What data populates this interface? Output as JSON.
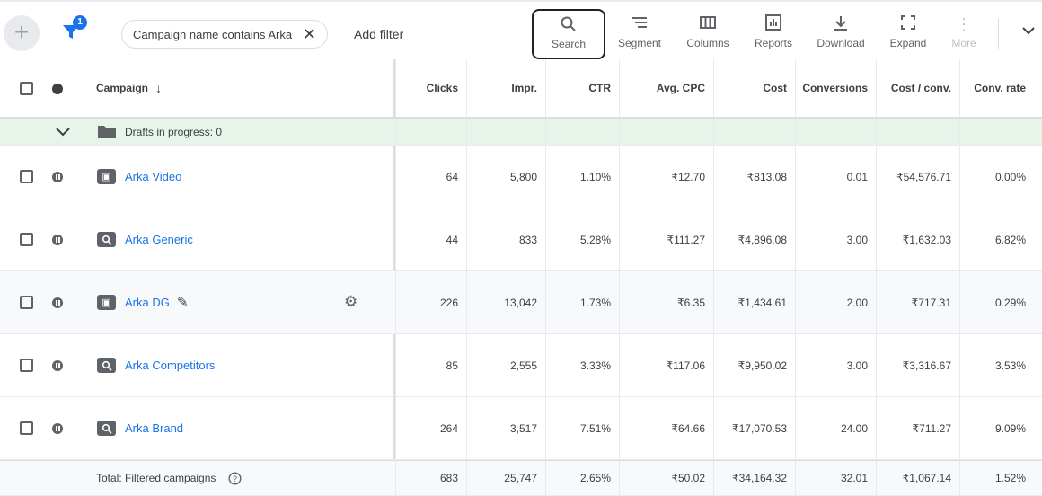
{
  "toolbar": {
    "filter_count": "1",
    "filter_chip": "Campaign name contains Arka",
    "add_filter": "Add filter",
    "tools": [
      {
        "icon": "search-icon",
        "label": "Search"
      },
      {
        "icon": "segment-icon",
        "label": "Segment"
      },
      {
        "icon": "columns-icon",
        "label": "Columns"
      },
      {
        "icon": "reports-icon",
        "label": "Reports"
      },
      {
        "icon": "download-icon",
        "label": "Download"
      },
      {
        "icon": "expand-icon",
        "label": "Expand"
      },
      {
        "icon": "more-icon",
        "label": "More"
      }
    ]
  },
  "table": {
    "headers": {
      "campaign": "Campaign",
      "clicks": "Clicks",
      "impr": "Impr.",
      "ctr": "CTR",
      "avg_cpc": "Avg. CPC",
      "cost": "Cost",
      "conversions": "Conversions",
      "cost_conv": "Cost / conv.",
      "conv_rate": "Conv. rate"
    },
    "drafts": "Drafts in progress: 0",
    "rows": [
      {
        "name": "Arka Video",
        "type": "video",
        "clicks": "64",
        "impr": "5,800",
        "ctr": "1.10%",
        "avg_cpc": "₹12.70",
        "cost": "₹813.08",
        "conversions": "0.01",
        "cost_conv": "₹54,576.71",
        "conv_rate": "0.00%"
      },
      {
        "name": "Arka Generic",
        "type": "search",
        "clicks": "44",
        "impr": "833",
        "ctr": "5.28%",
        "avg_cpc": "₹111.27",
        "cost": "₹4,896.08",
        "conversions": "3.00",
        "cost_conv": "₹1,632.03",
        "conv_rate": "6.82%"
      },
      {
        "name": "Arka DG",
        "type": "video",
        "clicks": "226",
        "impr": "13,042",
        "ctr": "1.73%",
        "avg_cpc": "₹6.35",
        "cost": "₹1,434.61",
        "conversions": "2.00",
        "cost_conv": "₹717.31",
        "conv_rate": "0.29%"
      },
      {
        "name": "Arka Competitors",
        "type": "search",
        "clicks": "85",
        "impr": "2,555",
        "ctr": "3.33%",
        "avg_cpc": "₹117.06",
        "cost": "₹9,950.02",
        "conversions": "3.00",
        "cost_conv": "₹3,316.67",
        "conv_rate": "3.53%"
      },
      {
        "name": "Arka Brand",
        "type": "search",
        "clicks": "264",
        "impr": "3,517",
        "ctr": "7.51%",
        "avg_cpc": "₹64.66",
        "cost": "₹17,070.53",
        "conversions": "24.00",
        "cost_conv": "₹711.27",
        "conv_rate": "9.09%"
      }
    ],
    "total": {
      "label": "Total: Filtered campaigns",
      "clicks": "683",
      "impr": "25,747",
      "ctr": "2.65%",
      "avg_cpc": "₹50.02",
      "cost": "₹34,164.32",
      "conversions": "32.01",
      "cost_conv": "₹1,067.14",
      "conv_rate": "1.52%"
    }
  }
}
